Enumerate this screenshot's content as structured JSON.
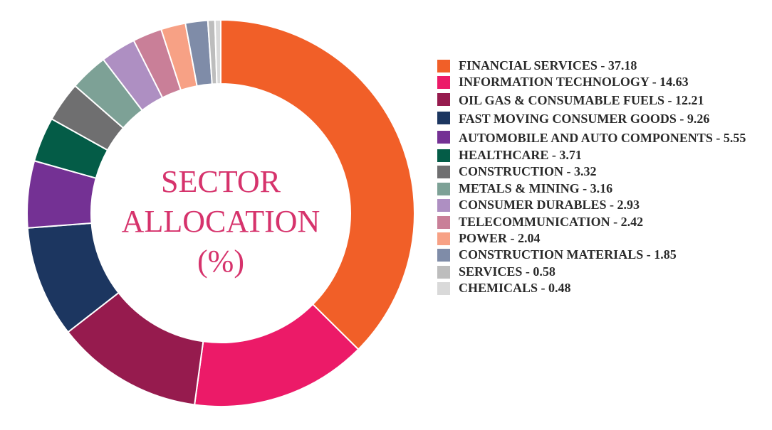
{
  "chart_data": {
    "type": "pie",
    "title_lines": [
      "SECTOR",
      "ALLOCATION",
      "(%)"
    ],
    "slices": [
      {
        "label": "FINANCIAL SERVICES",
        "value": 37.18,
        "color": "#f15f28"
      },
      {
        "label": "INFORMATION TECHNOLOGY",
        "value": 14.63,
        "color": "#ec1a68"
      },
      {
        "label": "OIL GAS & CONSUMABLE FUELS",
        "value": 12.21,
        "color": "#961b4e"
      },
      {
        "label": "FAST MOVING CONSUMER GOODS",
        "value": 9.26,
        "color": "#1c3660"
      },
      {
        "label": "AUTOMOBILE AND AUTO COMPONENTS",
        "value": 5.55,
        "color": "#743194"
      },
      {
        "label": "HEALTHCARE",
        "value": 3.71,
        "color": "#045c47"
      },
      {
        "label": "CONSTRUCTION",
        "value": 3.32,
        "color": "#6f6f70"
      },
      {
        "label": "METALS & MINING",
        "value": 3.16,
        "color": "#7da196"
      },
      {
        "label": "CONSUMER DURABLES",
        "value": 2.93,
        "color": "#ae8fc2"
      },
      {
        "label": "TELECOMMUNICATION",
        "value": 2.42,
        "color": "#c97f98"
      },
      {
        "label": "POWER",
        "value": 2.04,
        "color": "#f7a185"
      },
      {
        "label": "CONSTRUCTION MATERIALS",
        "value": 1.85,
        "color": "#7f8ca8"
      },
      {
        "label": "SERVICES",
        "value": 0.58,
        "color": "#bdbdbd"
      },
      {
        "label": "CHEMICALS",
        "value": 0.48,
        "color": "#d9d9d9"
      }
    ],
    "legend_position": "right"
  },
  "legend": {
    "items": [
      "FINANCIAL SERVICES - 37.18",
      "INFORMATION TECHNOLOGY - 14.63",
      "OIL GAS & CONSUMABLE FUELS - 12.21",
      "FAST MOVING CONSUMER GOODS - 9.26",
      "AUTOMOBILE AND AUTO COMPONENTS - 5.55",
      "HEALTHCARE - 3.71",
      "CONSTRUCTION - 3.32",
      "METALS & MINING - 3.16",
      "CONSUMER DURABLES - 2.93",
      "TELECOMMUNICATION - 2.42",
      "POWER - 2.04",
      "CONSTRUCTION MATERIALS - 1.85",
      "SERVICES - 0.58",
      "CHEMICALS - 0.48"
    ]
  }
}
